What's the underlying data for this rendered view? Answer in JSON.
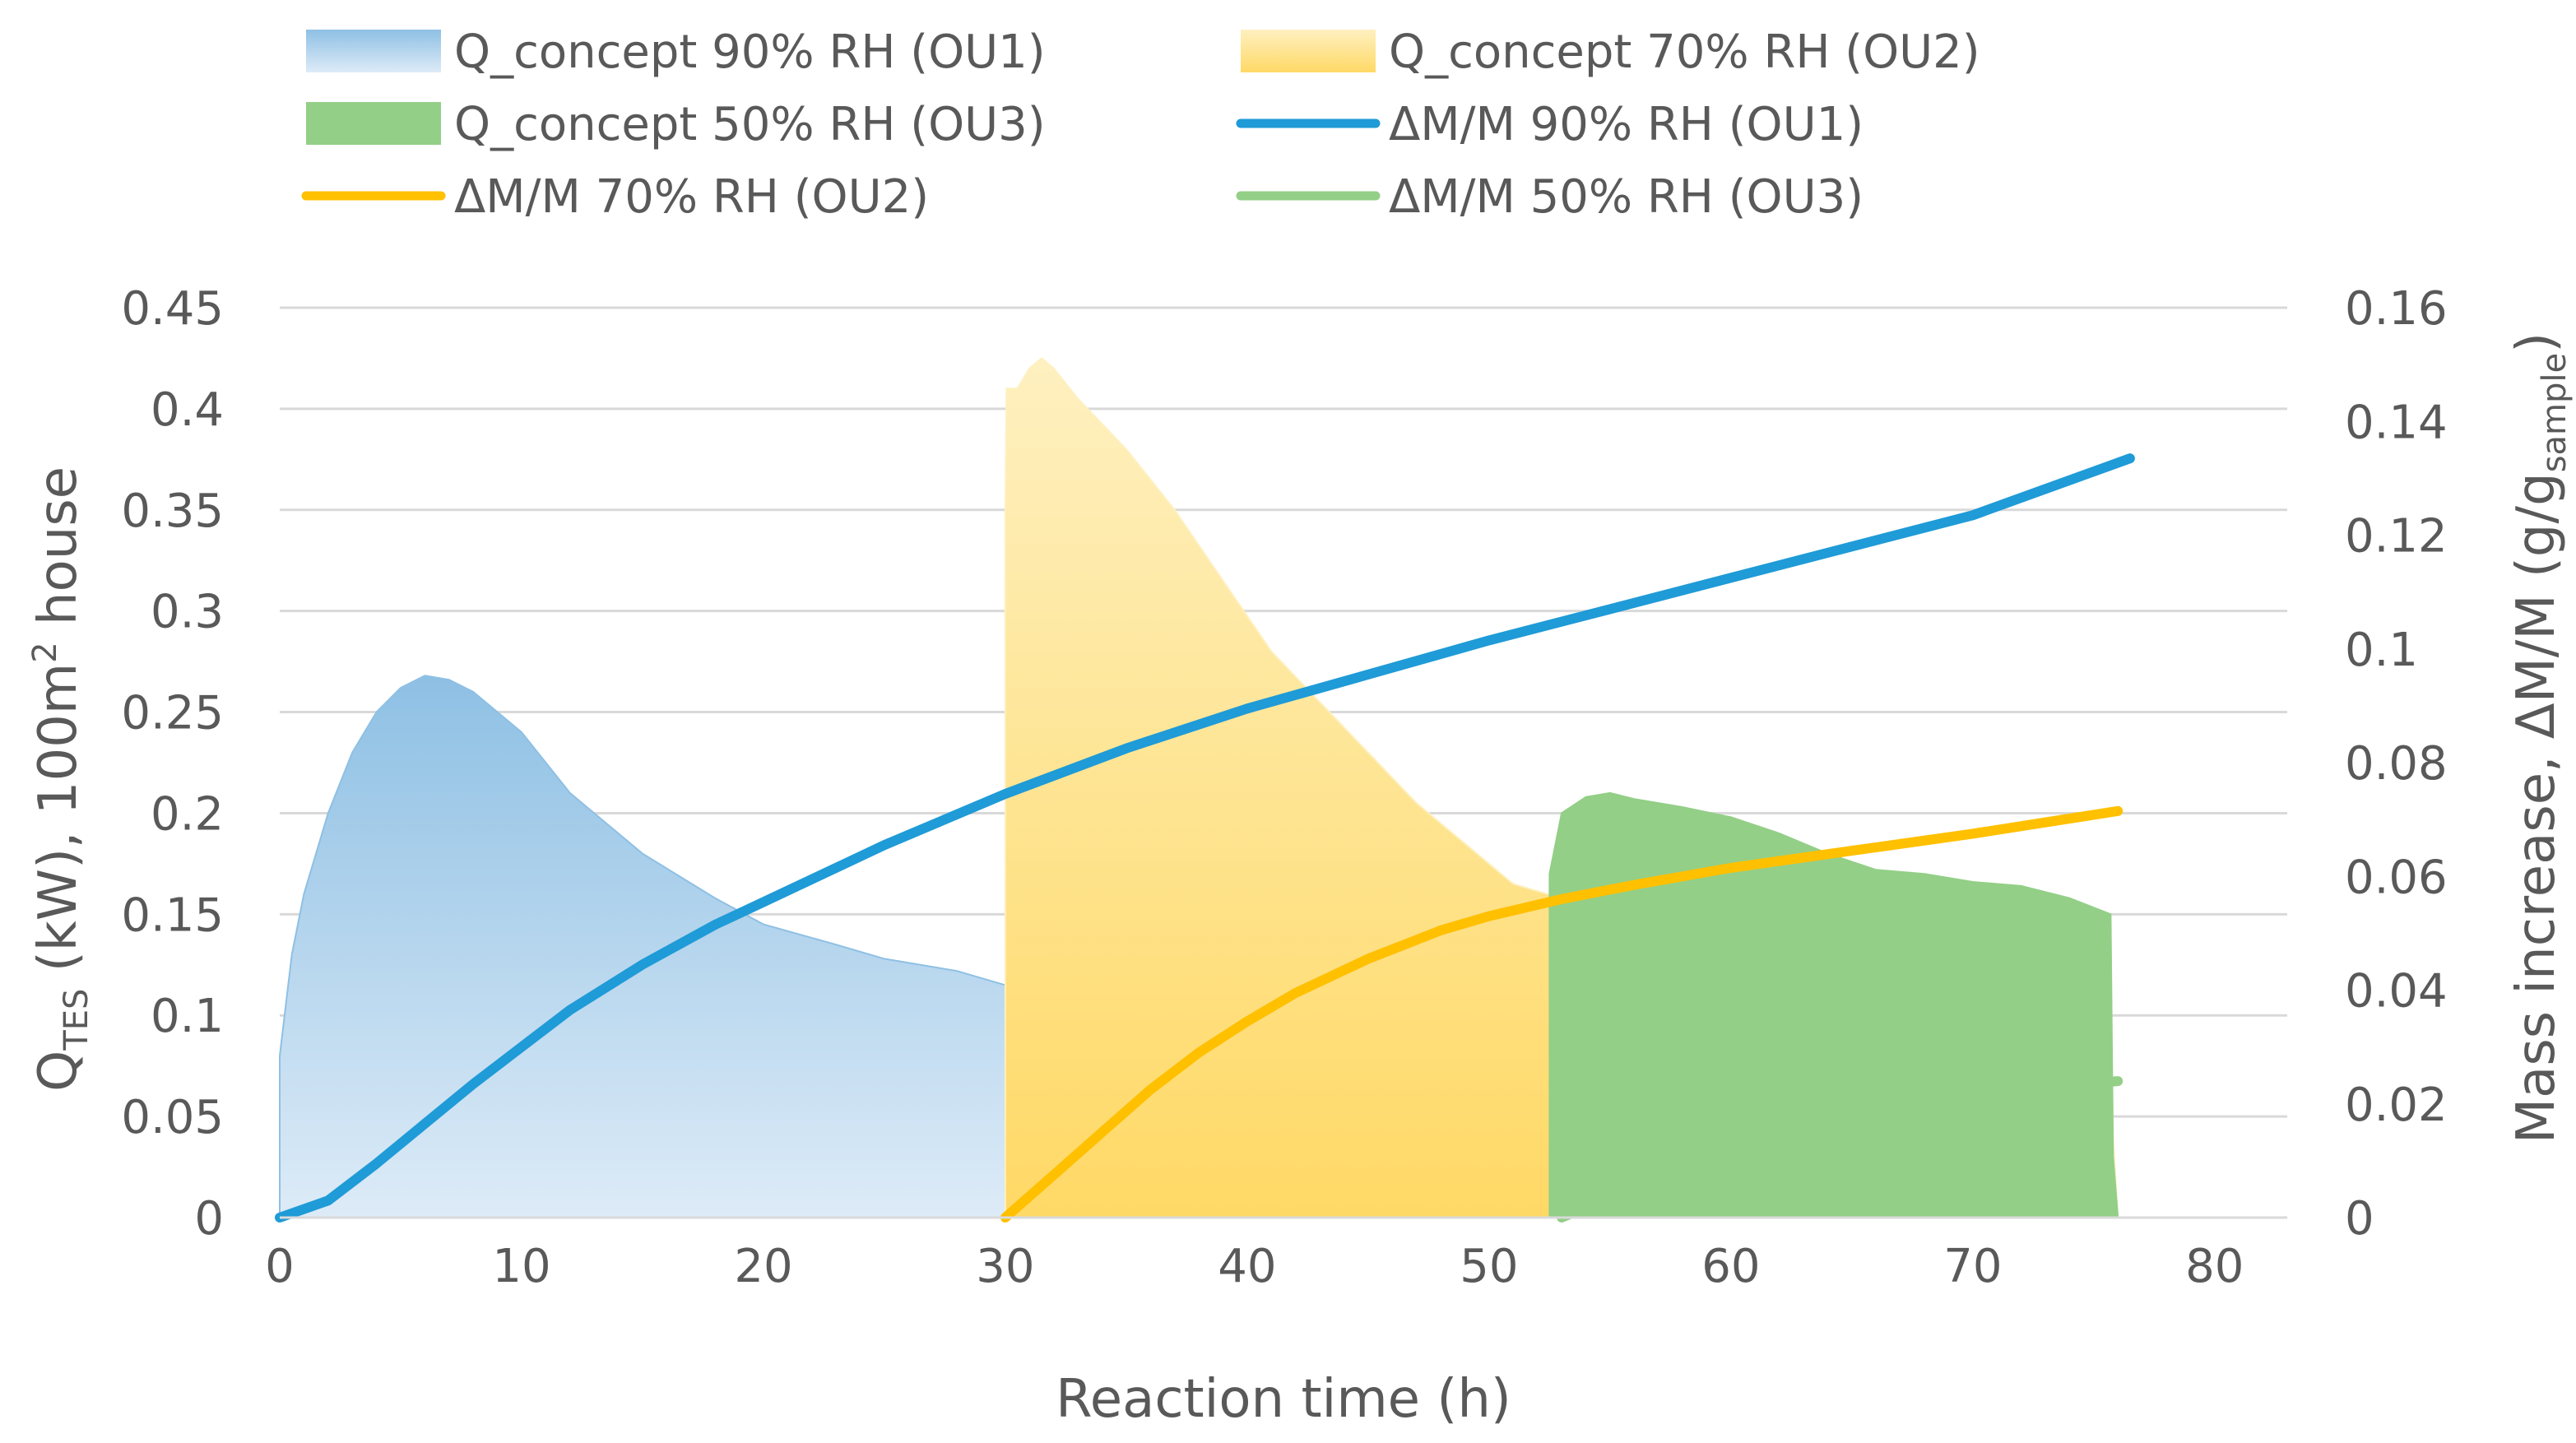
{
  "chart_data": {
    "type": "area+line",
    "title": "",
    "xlabel": "Reaction time (h)",
    "ylabel_left": {
      "main": "Q",
      "sub": "TES",
      "rest": " (kW), 100m",
      "sup": "2",
      "tail": " house"
    },
    "ylabel_right": {
      "main": "Mass increase, ΔM/M (g/g",
      "sub": "sample",
      "tail": ")"
    },
    "xlim": [
      0,
      83
    ],
    "ylim_left": [
      0,
      0.45
    ],
    "ylim_right": [
      0,
      0.16
    ],
    "x_ticks": [
      0,
      10,
      20,
      30,
      40,
      50,
      60,
      70,
      80
    ],
    "x_tick_labels": [
      "0",
      "10",
      "20",
      "30",
      "40",
      "50",
      "60",
      "70",
      "80"
    ],
    "y_left_ticks": [
      0,
      0.05,
      0.1,
      0.15,
      0.2,
      0.25,
      0.3,
      0.35,
      0.4,
      0.45
    ],
    "y_left_tick_labels": [
      "0",
      "0.05",
      "0.1",
      "0.15",
      "0.2",
      "0.25",
      "0.3",
      "0.35",
      "0.4",
      "0.45"
    ],
    "y_right_ticks": [
      0,
      0.02,
      0.04,
      0.06,
      0.08,
      0.1,
      0.12,
      0.14,
      0.16
    ],
    "y_right_tick_labels": [
      "0",
      "0.02",
      "0.04",
      "0.06",
      "0.08",
      "0.1",
      "0.12",
      "0.14",
      "0.16"
    ],
    "grid": true,
    "legend_position": "top",
    "series": [
      {
        "name": "Q_concept 90% RH (OU1)",
        "kind": "area",
        "axis": "left",
        "color_top": "#8ec0e4",
        "color_bottom": "#ddebf7",
        "x": [
          0,
          0.5,
          1,
          2,
          3,
          4,
          5,
          6,
          7,
          8,
          10,
          12,
          15,
          18,
          20,
          23,
          25,
          28,
          30,
          35,
          40,
          45,
          50,
          55,
          60,
          65,
          70,
          75,
          75.5,
          75.8,
          76
        ],
        "y": [
          0.08,
          0.13,
          0.16,
          0.2,
          0.23,
          0.25,
          0.262,
          0.268,
          0.266,
          0.26,
          0.24,
          0.21,
          0.18,
          0.158,
          0.145,
          0.135,
          0.128,
          0.122,
          0.115,
          0.108,
          0.101,
          0.097,
          0.093,
          0.089,
          0.087,
          0.085,
          0.083,
          0.082,
          0.05,
          0.02,
          0
        ]
      },
      {
        "name": "Q_concept 70% RH (OU2)",
        "kind": "area",
        "axis": "left",
        "color_top": "#fef0c0",
        "color_bottom": "#ffd966",
        "x": [
          30,
          30.05,
          30.5,
          31,
          31.5,
          32,
          33,
          35,
          37,
          39,
          41,
          43,
          45,
          47,
          49,
          50,
          51,
          53,
          55,
          58,
          60,
          63,
          65,
          68,
          70,
          72,
          74,
          75.7,
          75.8,
          76
        ],
        "y": [
          0.35,
          0.41,
          0.41,
          0.42,
          0.425,
          0.42,
          0.405,
          0.38,
          0.35,
          0.315,
          0.28,
          0.255,
          0.23,
          0.205,
          0.185,
          0.175,
          0.165,
          0.158,
          0.152,
          0.142,
          0.137,
          0.13,
          0.132,
          0.127,
          0.128,
          0.128,
          0.126,
          0.122,
          0.04,
          0
        ]
      },
      {
        "name": "Q_concept 50% RH (OU3)",
        "kind": "area",
        "axis": "left",
        "color_top": "#93cf87",
        "color_bottom": "#93cf87",
        "x": [
          52.5,
          53,
          54,
          55,
          56,
          58,
          60,
          62,
          64,
          66,
          68,
          70,
          72,
          74,
          75.7,
          75.8,
          76
        ],
        "y": [
          0.17,
          0.2,
          0.208,
          0.21,
          0.207,
          0.203,
          0.198,
          0.19,
          0.18,
          0.172,
          0.17,
          0.166,
          0.164,
          0.158,
          0.15,
          0.03,
          0
        ]
      },
      {
        "name": "ΔM/M 90% RH (OU1)",
        "kind": "line",
        "axis": "right",
        "color": "#1f9bd7",
        "x": [
          0,
          2,
          4,
          6,
          8,
          10,
          12,
          15,
          18,
          20,
          25,
          30,
          35,
          40,
          45,
          50,
          55,
          60,
          65,
          70,
          76.5
        ],
        "y": [
          0,
          0.003,
          0.0095,
          0.0165,
          0.0235,
          0.03,
          0.0365,
          0.0445,
          0.0515,
          0.0555,
          0.0655,
          0.0745,
          0.0825,
          0.0895,
          0.0955,
          0.1015,
          0.107,
          0.1125,
          0.118,
          0.1235,
          0.1335
        ]
      },
      {
        "name": "ΔM/M 70% RH (OU2)",
        "kind": "line",
        "axis": "right",
        "color": "#ffc000",
        "x": [
          30,
          32,
          34,
          36,
          38,
          40,
          42,
          45,
          48,
          50,
          53,
          56,
          60,
          65,
          70,
          76
        ],
        "y": [
          0,
          0.0075,
          0.015,
          0.0225,
          0.029,
          0.0345,
          0.0395,
          0.0455,
          0.0505,
          0.053,
          0.056,
          0.0585,
          0.0615,
          0.0645,
          0.0675,
          0.0715
        ]
      },
      {
        "name": "ΔM/M 50% RH (OU3)",
        "kind": "line",
        "axis": "right",
        "color": "#93cf87",
        "x": [
          53,
          55,
          57,
          59,
          61,
          63,
          65,
          68,
          70,
          72,
          74,
          76
        ],
        "y": [
          0,
          0.0035,
          0.0075,
          0.011,
          0.014,
          0.0163,
          0.018,
          0.0205,
          0.0215,
          0.0225,
          0.0233,
          0.024
        ]
      }
    ],
    "legend": [
      {
        "label": "Q_concept 90% RH (OU1)",
        "kind": "area",
        "color_top": "#8ec0e4",
        "color_bottom": "#ddebf7"
      },
      {
        "label": "Q_concept 70% RH (OU2)",
        "kind": "area",
        "color_top": "#fef0c0",
        "color_bottom": "#ffd966"
      },
      {
        "label": "Q_concept 50% RH (OU3)",
        "kind": "area",
        "color_top": "#93cf87",
        "color_bottom": "#93cf87"
      },
      {
        "label": "ΔM/M 90% RH (OU1)",
        "kind": "line",
        "color": "#1f9bd7"
      },
      {
        "label": "ΔM/M 70% RH (OU2)",
        "kind": "line",
        "color": "#ffc000"
      },
      {
        "label": "ΔM/M 50% RH (OU3)",
        "kind": "line",
        "color": "#93cf87"
      }
    ]
  }
}
